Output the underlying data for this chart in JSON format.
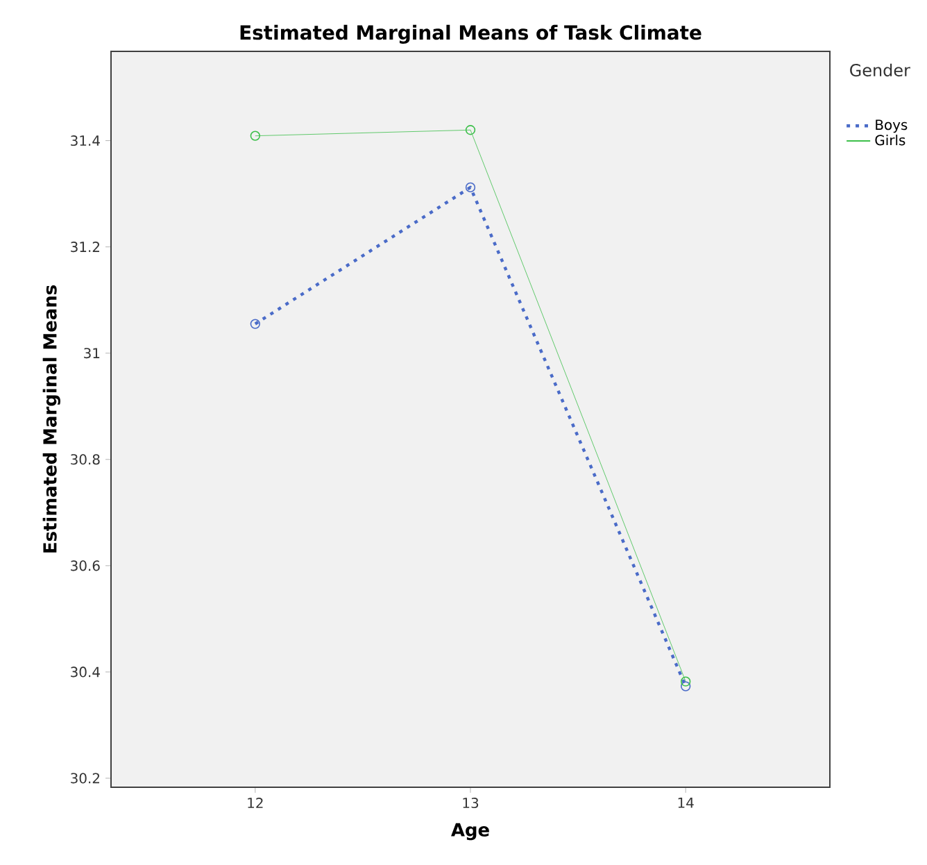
{
  "chart_data": {
    "type": "line",
    "title": "Estimated Marginal Means of Task Climate",
    "xlabel": "Age",
    "ylabel": "Estimated Marginal Means",
    "legend_title": "Gender",
    "categories": [
      "12",
      "13",
      "14"
    ],
    "series": [
      {
        "name": "Boys",
        "color": "#4a6bc8",
        "values": [
          31.055,
          31.312,
          30.373
        ],
        "line_style": "dotted"
      },
      {
        "name": "Girls",
        "color": "#3cbf4a",
        "values": [
          31.409,
          31.42,
          30.382
        ],
        "line_style": "solid"
      }
    ],
    "ylim": [
      30.183,
      31.568
    ],
    "yticks": [
      30.2,
      30.4,
      30.6,
      30.8,
      31,
      31.2,
      31.4
    ],
    "marker": "circle",
    "grid": false,
    "legend": "top right"
  }
}
